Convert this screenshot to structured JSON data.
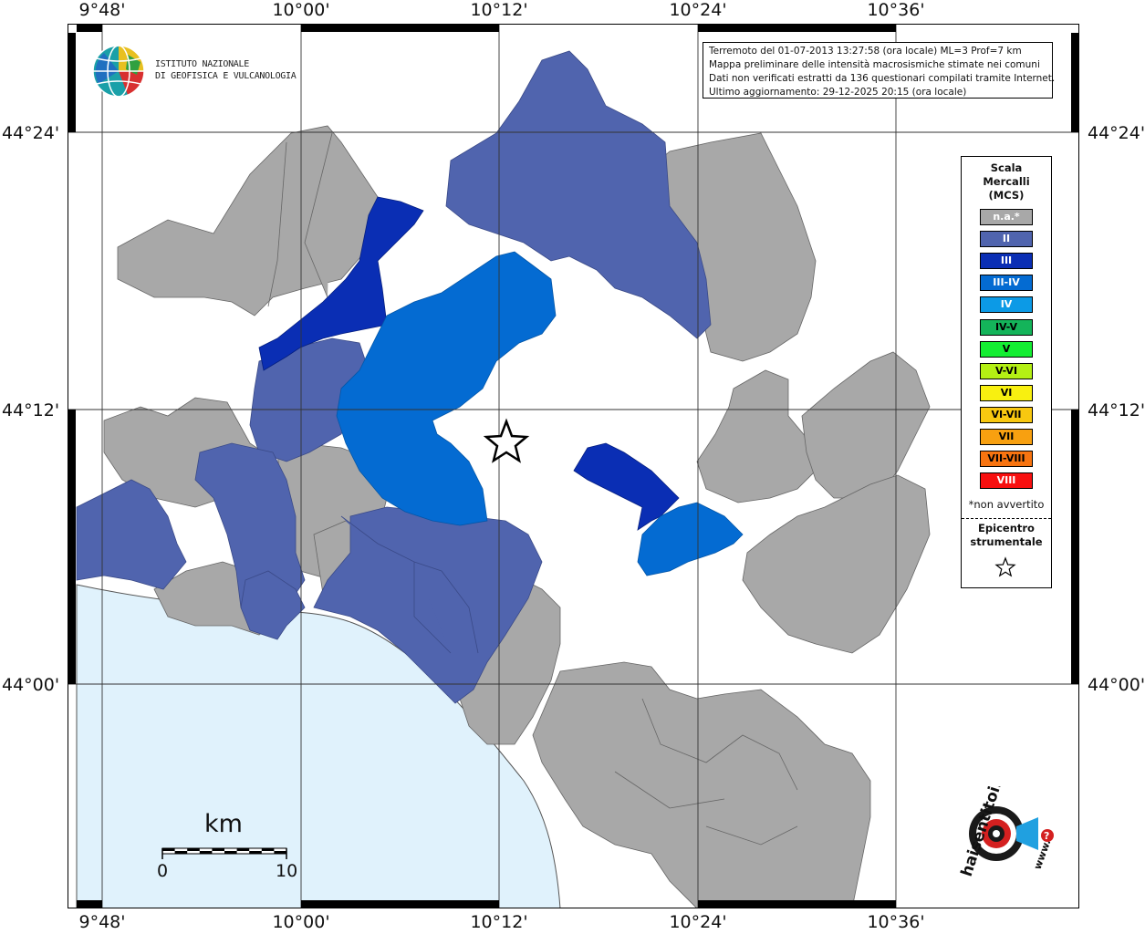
{
  "map": {
    "top_labels": [
      "9°48'",
      "10°00'",
      "10°12'",
      "10°24'",
      "10°36'"
    ],
    "bottom_labels": [
      "9°48'",
      "10°00'",
      "10°12'",
      "10°24'",
      "10°36'"
    ],
    "left_labels": [
      "44°24'",
      "44°12'",
      "44°00'"
    ],
    "right_labels": [
      "44°24'",
      "44°12'",
      "44°00'"
    ],
    "colors": {
      "sea": "#e0f2fc",
      "na": "#a8a8a8",
      "II": "#5064ae",
      "III": "#0a2eb4",
      "III-IV": "#046bd2",
      "border": "#555555"
    }
  },
  "info": {
    "line1": "Terremoto del 01-07-2013 13:27:58 (ora locale) ML=3 Prof=7 km",
    "line2": "Mappa preliminare delle intensità macrosismiche stimate nei comuni",
    "line3": "Dati non verificati estratti da 136 questionari compilati tramite Internet.",
    "line4": "Ultimo aggiornamento: 29-12-2025 20:15 (ora locale)"
  },
  "logo_ingv": {
    "line1": "ISTITUTO NAZIONALE",
    "line2": "DI GEOFISICA E VULCANOLOGIA"
  },
  "legend": {
    "title_line1": "Scala",
    "title_line2": "Mercalli",
    "title_line3": "(MCS)",
    "items": [
      {
        "label": "n.a.*",
        "color": "#a8a8a8",
        "text_color": "#ffffff"
      },
      {
        "label": "II",
        "color": "#5064ae",
        "text_color": "#ffffff"
      },
      {
        "label": "III",
        "color": "#0a2eb4",
        "text_color": "#ffffff"
      },
      {
        "label": "III-IV",
        "color": "#046bd2",
        "text_color": "#ffffff"
      },
      {
        "label": "IV",
        "color": "#0c9ae6",
        "text_color": "#ffffff"
      },
      {
        "label": "IV-V",
        "color": "#14b45a",
        "text_color": "#000000"
      },
      {
        "label": "V",
        "color": "#14ee32",
        "text_color": "#000000"
      },
      {
        "label": "V-VI",
        "color": "#b4f014",
        "text_color": "#000000"
      },
      {
        "label": "VI",
        "color": "#f8f010",
        "text_color": "#000000"
      },
      {
        "label": "VI-VII",
        "color": "#f8c810",
        "text_color": "#000000"
      },
      {
        "label": "VII",
        "color": "#f8a010",
        "text_color": "#000000"
      },
      {
        "label": "VII-VIII",
        "color": "#f87410",
        "text_color": "#000000"
      },
      {
        "label": "VIII",
        "color": "#f81010",
        "text_color": "#ffffff"
      }
    ],
    "footnote": "*non avvertito",
    "epicentro_line1": "Epicentro",
    "epicentro_line2": "strumentale"
  },
  "scale": {
    "title": "km",
    "min": "0",
    "max": "10"
  },
  "logo_hsit": {
    "text": "haisentitoilterremoto.it",
    "text_web": "www.",
    "accent": "#d42020"
  }
}
